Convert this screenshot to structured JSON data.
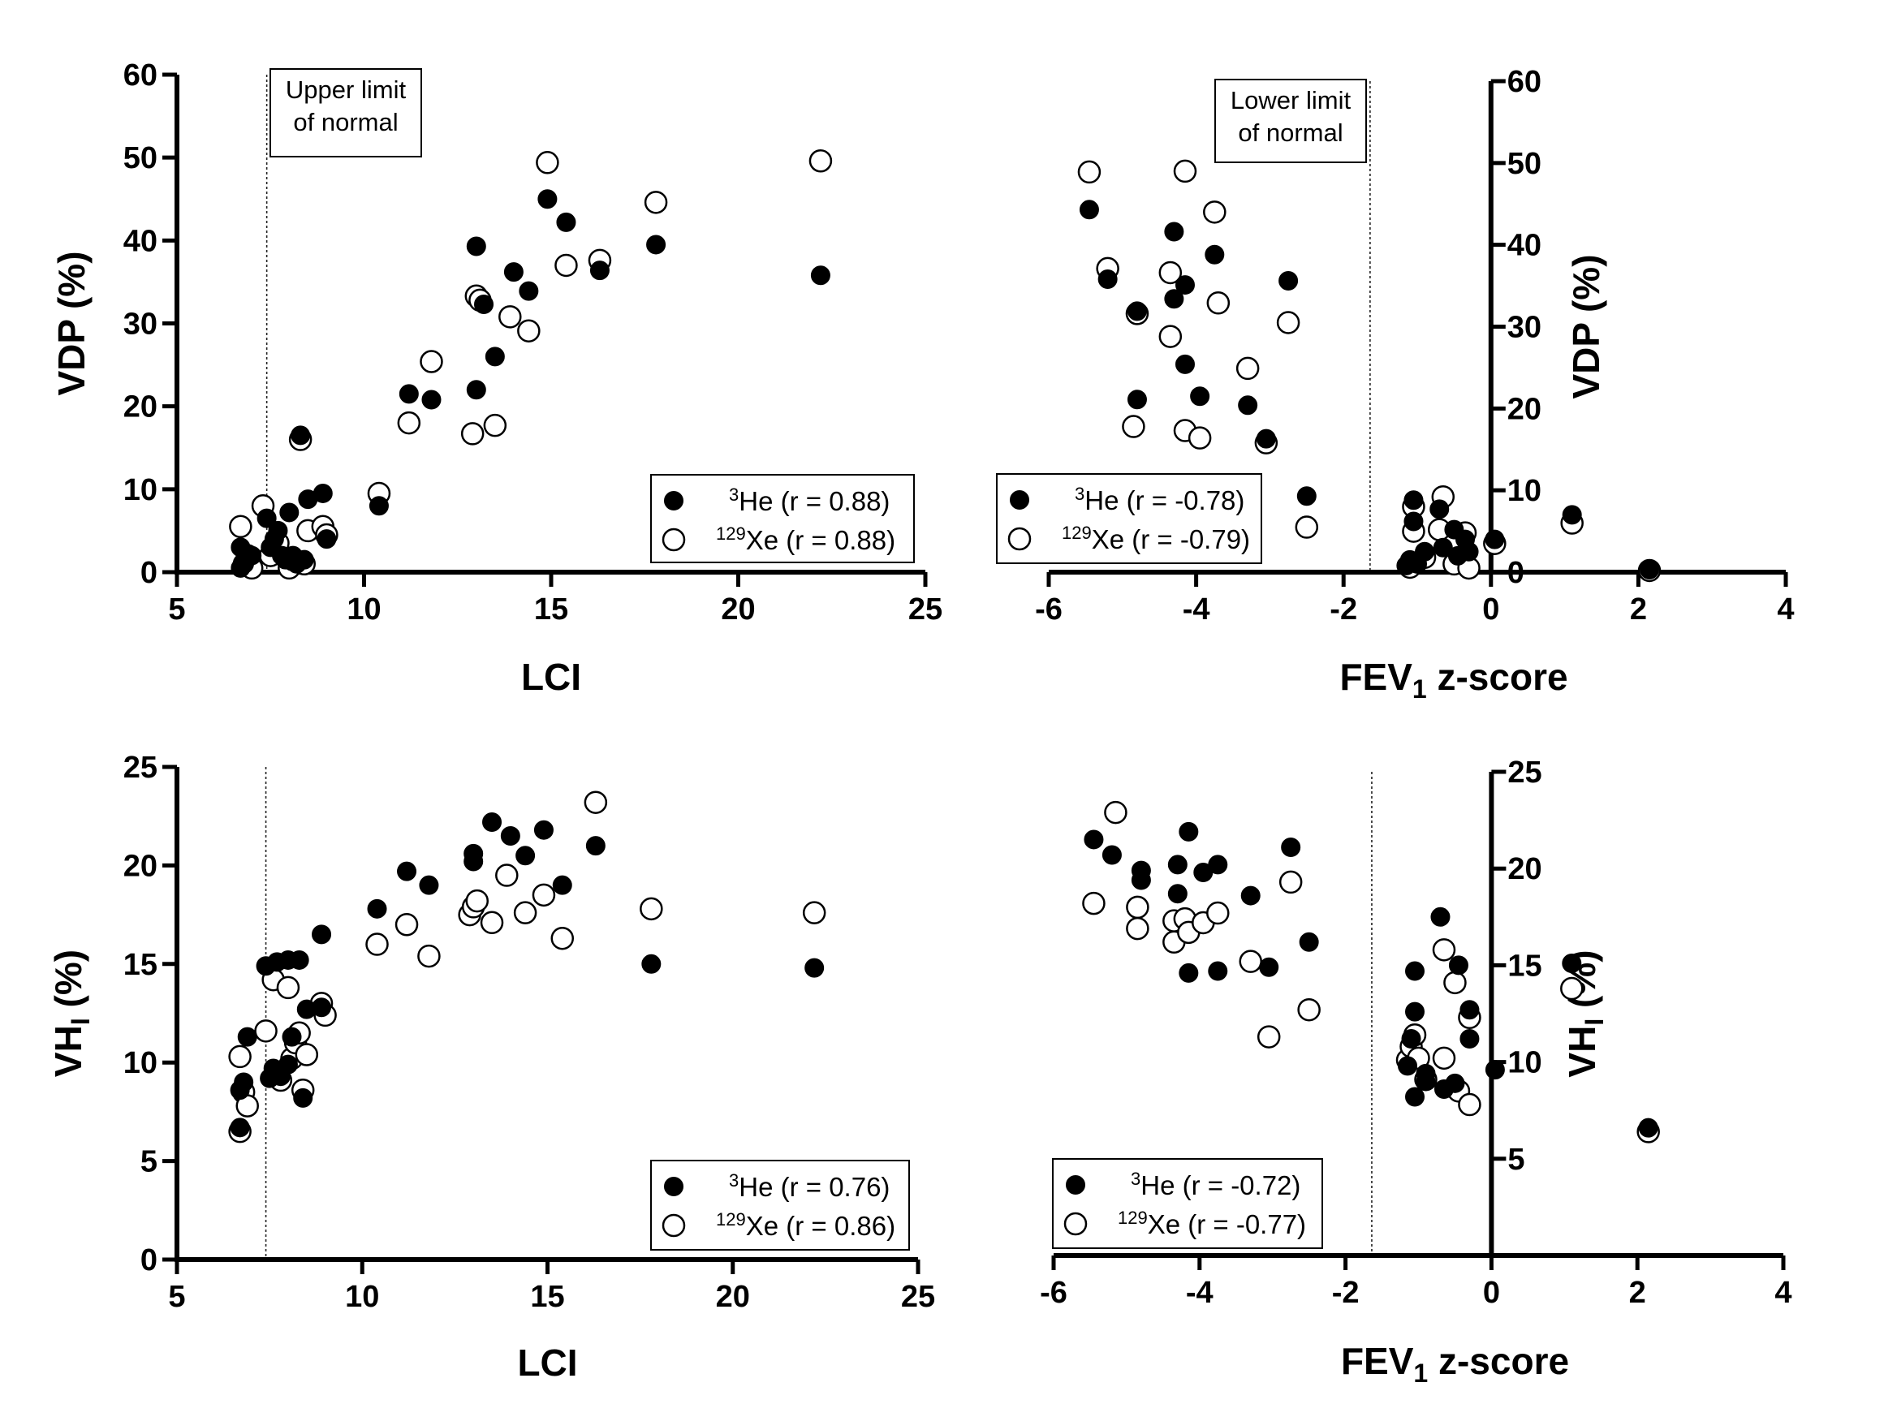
{
  "chart_data": [
    {
      "type": "scatter",
      "panel": "top-left",
      "xlabel": "LCI",
      "ylabel_main": "VDP (%)",
      "xlim": [
        5,
        25
      ],
      "ylim": [
        0,
        60
      ],
      "xticks": [
        "5",
        "10",
        "15",
        "20",
        "25"
      ],
      "yticks": [
        "0",
        "10",
        "20",
        "30",
        "40",
        "50",
        "60"
      ],
      "reference_x": 7.4,
      "annotation_lines": [
        "Upper limit",
        "of normal"
      ],
      "legend_position": "bottom-right",
      "series": [
        {
          "name": "3He",
          "label_sup": "3",
          "label_main": "He (r = 0.88)",
          "marker": "filled",
          "points": [
            [
              6.7,
              3.0
            ],
            [
              6.7,
              0.5
            ],
            [
              6.8,
              1.0
            ],
            [
              6.9,
              2.2
            ],
            [
              7.0,
              2.0
            ],
            [
              7.4,
              6.5
            ],
            [
              7.5,
              3.0
            ],
            [
              7.6,
              4.0
            ],
            [
              7.7,
              5.0
            ],
            [
              7.8,
              2.0
            ],
            [
              7.9,
              1.5
            ],
            [
              8.0,
              7.2
            ],
            [
              8.1,
              2.0
            ],
            [
              8.2,
              1.0
            ],
            [
              8.3,
              16.5
            ],
            [
              8.4,
              1.5
            ],
            [
              8.5,
              8.8
            ],
            [
              8.9,
              9.5
            ],
            [
              9.0,
              4.0
            ],
            [
              10.4,
              8.0
            ],
            [
              11.2,
              21.5
            ],
            [
              11.8,
              20.8
            ],
            [
              13.0,
              39.3
            ],
            [
              13.0,
              22.0
            ],
            [
              13.2,
              32.3
            ],
            [
              13.5,
              26.0
            ],
            [
              14.0,
              36.2
            ],
            [
              14.4,
              33.9
            ],
            [
              14.9,
              45.0
            ],
            [
              15.4,
              42.2
            ],
            [
              16.3,
              36.4
            ],
            [
              17.8,
              39.5
            ],
            [
              22.2,
              35.8
            ]
          ]
        },
        {
          "name": "129Xe",
          "label_sup": "129",
          "label_main": "Xe (r = 0.88)",
          "marker": "open",
          "points": [
            [
              6.7,
              5.5
            ],
            [
              6.8,
              1.0
            ],
            [
              7.0,
              0.5
            ],
            [
              7.3,
              8.0
            ],
            [
              7.5,
              2.0
            ],
            [
              7.7,
              3.5
            ],
            [
              8.0,
              0.5
            ],
            [
              8.1,
              1.5
            ],
            [
              8.3,
              16.0
            ],
            [
              8.4,
              1.0
            ],
            [
              8.5,
              5.0
            ],
            [
              8.9,
              5.5
            ],
            [
              9.0,
              4.5
            ],
            [
              10.4,
              9.5
            ],
            [
              11.2,
              18.0
            ],
            [
              11.8,
              25.4
            ],
            [
              12.9,
              16.7
            ],
            [
              13.0,
              33.3
            ],
            [
              13.1,
              32.8
            ],
            [
              13.5,
              17.7
            ],
            [
              13.9,
              30.8
            ],
            [
              14.4,
              29.1
            ],
            [
              14.9,
              49.4
            ],
            [
              15.4,
              37.0
            ],
            [
              16.3,
              37.6
            ],
            [
              17.8,
              44.6
            ],
            [
              22.2,
              49.6
            ]
          ]
        }
      ]
    },
    {
      "type": "scatter",
      "panel": "top-right",
      "xlabel_main": "FEV",
      "xlabel_sub": "1",
      "xlabel_rest": " z-score",
      "ylabel_main": "VDP (%)",
      "xlim": [
        -6,
        4
      ],
      "ylim": [
        0,
        60
      ],
      "xticks": [
        "-6",
        "-4",
        "-2",
        "0",
        "2",
        "4"
      ],
      "yticks": [
        "0",
        "10",
        "20",
        "30",
        "40",
        "50",
        "60"
      ],
      "reference_x": -1.64,
      "annotation_lines": [
        "Lower limit",
        "of normal"
      ],
      "legend_position": "bottom-left",
      "series": [
        {
          "name": "3He",
          "label_sup": "3",
          "label_main": "He (r = -0.78)",
          "marker": "filled",
          "points": [
            [
              -5.45,
              44.3
            ],
            [
              -5.2,
              35.8
            ],
            [
              -4.8,
              31.9
            ],
            [
              -4.8,
              21.1
            ],
            [
              -4.3,
              41.6
            ],
            [
              -4.3,
              33.4
            ],
            [
              -4.15,
              35.1
            ],
            [
              -4.15,
              25.4
            ],
            [
              -3.95,
              21.5
            ],
            [
              -3.75,
              38.8
            ],
            [
              -3.3,
              20.4
            ],
            [
              -3.05,
              16.3
            ],
            [
              -2.75,
              35.6
            ],
            [
              -2.5,
              9.3
            ],
            [
              -1.15,
              0.8
            ],
            [
              -1.1,
              1.5
            ],
            [
              -1.05,
              6.2
            ],
            [
              -1.05,
              8.8
            ],
            [
              -1.0,
              1.0
            ],
            [
              -0.9,
              2.5
            ],
            [
              -0.7,
              7.7
            ],
            [
              -0.65,
              3.0
            ],
            [
              -0.5,
              5.2
            ],
            [
              -0.45,
              2.0
            ],
            [
              -0.35,
              4.0
            ],
            [
              -0.3,
              2.5
            ],
            [
              0.05,
              4.0
            ],
            [
              1.1,
              7.0
            ],
            [
              2.15,
              0.3
            ]
          ]
        },
        {
          "name": "129Xe",
          "label_sup": "129",
          "label_main": "Xe (r = -0.79)",
          "marker": "open",
          "points": [
            [
              -5.45,
              48.9
            ],
            [
              -5.2,
              37.1
            ],
            [
              -4.8,
              31.6
            ],
            [
              -4.85,
              17.8
            ],
            [
              -4.35,
              36.6
            ],
            [
              -4.35,
              28.8
            ],
            [
              -4.15,
              49.0
            ],
            [
              -4.15,
              17.3
            ],
            [
              -3.95,
              16.4
            ],
            [
              -3.75,
              44.0
            ],
            [
              -3.7,
              32.9
            ],
            [
              -3.3,
              24.9
            ],
            [
              -3.05,
              15.8
            ],
            [
              -2.75,
              30.5
            ],
            [
              -2.5,
              5.5
            ],
            [
              -1.1,
              0.6
            ],
            [
              -1.05,
              5.0
            ],
            [
              -1.05,
              8.0
            ],
            [
              -0.9,
              1.8
            ],
            [
              -0.7,
              5.2
            ],
            [
              -0.65,
              9.2
            ],
            [
              -0.5,
              1.0
            ],
            [
              -0.35,
              4.8
            ],
            [
              -0.3,
              0.5
            ],
            [
              0.05,
              3.5
            ],
            [
              1.1,
              6.0
            ],
            [
              2.15,
              0.2
            ]
          ]
        }
      ]
    },
    {
      "type": "scatter",
      "panel": "bottom-left",
      "xlabel": "LCI",
      "ylabel_main": "VH",
      "ylabel_sub": "I",
      "ylabel_rest": " (%)",
      "xlim": [
        5,
        25
      ],
      "ylim": [
        0,
        25
      ],
      "xticks": [
        "5",
        "10",
        "15",
        "20",
        "25"
      ],
      "yticks": [
        "0",
        "5",
        "10",
        "15",
        "20",
        "25"
      ],
      "reference_x": 7.4,
      "legend_position": "bottom-right",
      "series": [
        {
          "name": "3He",
          "label_sup": "3",
          "label_main": "He (r = 0.76)",
          "marker": "filled",
          "points": [
            [
              6.7,
              6.7
            ],
            [
              6.7,
              8.6
            ],
            [
              6.8,
              9.0
            ],
            [
              6.9,
              11.3
            ],
            [
              7.4,
              14.9
            ],
            [
              7.5,
              9.2
            ],
            [
              7.6,
              9.7
            ],
            [
              7.7,
              15.1
            ],
            [
              7.8,
              9.3
            ],
            [
              8.0,
              15.2
            ],
            [
              8.0,
              9.9
            ],
            [
              8.1,
              11.3
            ],
            [
              8.3,
              15.2
            ],
            [
              8.4,
              8.2
            ],
            [
              8.5,
              12.7
            ],
            [
              8.9,
              16.5
            ],
            [
              8.9,
              12.8
            ],
            [
              10.4,
              17.8
            ],
            [
              11.2,
              19.7
            ],
            [
              11.8,
              19.0
            ],
            [
              13.0,
              20.2
            ],
            [
              13.0,
              20.6
            ],
            [
              13.5,
              22.2
            ],
            [
              14.0,
              21.5
            ],
            [
              14.4,
              20.5
            ],
            [
              14.9,
              21.8
            ],
            [
              15.4,
              19.0
            ],
            [
              16.3,
              21.0
            ],
            [
              17.8,
              15.0
            ],
            [
              22.2,
              14.8
            ]
          ]
        },
        {
          "name": "129Xe",
          "label_sup": "129",
          "label_main": "Xe (r = 0.86)",
          "marker": "open",
          "points": [
            [
              6.7,
              6.5
            ],
            [
              6.7,
              10.3
            ],
            [
              6.8,
              8.5
            ],
            [
              6.9,
              7.8
            ],
            [
              7.4,
              11.6
            ],
            [
              7.6,
              14.2
            ],
            [
              7.8,
              9.1
            ],
            [
              8.0,
              13.8
            ],
            [
              8.1,
              10.2
            ],
            [
              8.2,
              11.0
            ],
            [
              8.3,
              11.5
            ],
            [
              8.4,
              8.6
            ],
            [
              8.5,
              10.4
            ],
            [
              8.9,
              13.0
            ],
            [
              9.0,
              12.4
            ],
            [
              10.4,
              16.0
            ],
            [
              11.2,
              17.0
            ],
            [
              11.8,
              15.4
            ],
            [
              12.9,
              17.5
            ],
            [
              13.0,
              17.9
            ],
            [
              13.1,
              18.2
            ],
            [
              13.5,
              17.1
            ],
            [
              13.9,
              19.5
            ],
            [
              14.4,
              17.6
            ],
            [
              14.9,
              18.5
            ],
            [
              15.4,
              16.3
            ],
            [
              16.3,
              23.2
            ],
            [
              17.8,
              17.8
            ],
            [
              22.2,
              17.6
            ]
          ]
        }
      ]
    },
    {
      "type": "scatter",
      "panel": "bottom-right",
      "xlabel_main": "FEV",
      "xlabel_sub": "1",
      "xlabel_rest": " z-score",
      "ylabel_main": "VH",
      "ylabel_sub": "I",
      "ylabel_rest": " (%)",
      "xlim": [
        -6,
        4
      ],
      "ylim": [
        0,
        25
      ],
      "xticks": [
        "-6",
        "-4",
        "-2",
        "0",
        "2",
        "4"
      ],
      "yticks": [
        "5",
        "10",
        "15",
        "20",
        "25"
      ],
      "reference_x": -1.64,
      "legend_position": "bottom-left",
      "series": [
        {
          "name": "3He",
          "label_sup": "3",
          "label_main": "He (r = -0.72)",
          "marker": "filled",
          "points": [
            [
              -5.45,
              21.5
            ],
            [
              -5.2,
              20.7
            ],
            [
              -4.8,
              19.4
            ],
            [
              -4.8,
              19.9
            ],
            [
              -4.3,
              20.2
            ],
            [
              -4.3,
              18.7
            ],
            [
              -4.15,
              21.9
            ],
            [
              -4.15,
              14.6
            ],
            [
              -3.95,
              19.8
            ],
            [
              -3.75,
              20.2
            ],
            [
              -3.75,
              14.7
            ],
            [
              -3.3,
              18.6
            ],
            [
              -3.05,
              14.9
            ],
            [
              -2.75,
              21.1
            ],
            [
              -2.5,
              16.2
            ],
            [
              -1.15,
              9.8
            ],
            [
              -1.1,
              11.2
            ],
            [
              -1.05,
              8.2
            ],
            [
              -1.05,
              12.6
            ],
            [
              -1.05,
              14.7
            ],
            [
              -0.9,
              9.4
            ],
            [
              -0.9,
              9.0
            ],
            [
              -0.7,
              17.5
            ],
            [
              -0.65,
              8.6
            ],
            [
              -0.5,
              8.9
            ],
            [
              -0.45,
              15.0
            ],
            [
              -0.3,
              12.7
            ],
            [
              -0.3,
              11.2
            ],
            [
              0.05,
              9.6
            ],
            [
              1.1,
              15.1
            ],
            [
              2.15,
              6.6
            ]
          ]
        },
        {
          "name": "129Xe",
          "label_sup": "129",
          "label_main": "Xe (r = -0.77)",
          "marker": "open",
          "points": [
            [
              -5.45,
              18.2
            ],
            [
              -5.15,
              22.9
            ],
            [
              -4.85,
              18.0
            ],
            [
              -4.85,
              16.9
            ],
            [
              -4.35,
              17.3
            ],
            [
              -4.35,
              16.2
            ],
            [
              -4.2,
              17.4
            ],
            [
              -4.15,
              16.7
            ],
            [
              -3.95,
              17.2
            ],
            [
              -3.75,
              17.7
            ],
            [
              -3.3,
              15.2
            ],
            [
              -3.05,
              11.3
            ],
            [
              -2.75,
              19.3
            ],
            [
              -2.5,
              12.7
            ],
            [
              -1.15,
              10.1
            ],
            [
              -1.1,
              10.8
            ],
            [
              -1.05,
              11.4
            ],
            [
              -1.0,
              10.2
            ],
            [
              -0.9,
              9.1
            ],
            [
              -0.65,
              15.8
            ],
            [
              -0.65,
              10.2
            ],
            [
              -0.5,
              14.1
            ],
            [
              -0.45,
              8.5
            ],
            [
              -0.3,
              12.3
            ],
            [
              -0.3,
              7.8
            ],
            [
              1.1,
              13.8
            ],
            [
              2.15,
              6.4
            ]
          ]
        }
      ]
    }
  ]
}
